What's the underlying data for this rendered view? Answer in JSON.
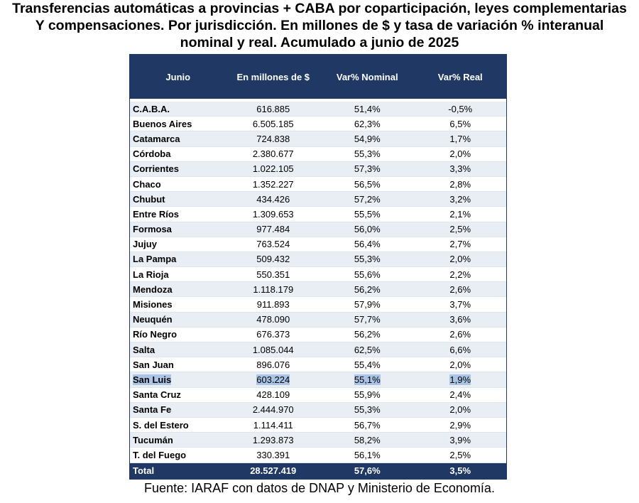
{
  "title": {
    "line1": "Transferencias  automáticas  a provincias  + CABA por coparticipación,  leyes complementarias",
    "line2": "Y compensaciones.  Por jurisdicción.  En millones de $ y tasa de variación % interanual",
    "line3": "nominal  y real.  Acumulado  a junio de 2025"
  },
  "table": {
    "headers": [
      "Junio",
      "En millones de $",
      "Var% Nominal",
      "Var% Real"
    ],
    "rows": [
      {
        "name": "C.A.B.A.",
        "amount": "616.885",
        "nominal": "51,4%",
        "real": "-0,5%"
      },
      {
        "name": "Buenos Aires",
        "amount": "6.505.185",
        "nominal": "62,3%",
        "real": "6,5%"
      },
      {
        "name": "Catamarca",
        "amount": "724.838",
        "nominal": "54,9%",
        "real": "1,7%"
      },
      {
        "name": "Córdoba",
        "amount": "2.380.677",
        "nominal": "55,3%",
        "real": "2,0%"
      },
      {
        "name": "Corrientes",
        "amount": "1.022.105",
        "nominal": "57,3%",
        "real": "3,3%"
      },
      {
        "name": "Chaco",
        "amount": "1.352.227",
        "nominal": "56,5%",
        "real": "2,8%"
      },
      {
        "name": "Chubut",
        "amount": "434.426",
        "nominal": "57,2%",
        "real": "3,2%"
      },
      {
        "name": "Entre Ríos",
        "amount": "1.309.653",
        "nominal": "55,5%",
        "real": "2,1%"
      },
      {
        "name": "Formosa",
        "amount": "977.484",
        "nominal": "56,0%",
        "real": "2,5%"
      },
      {
        "name": "Jujuy",
        "amount": "763.524",
        "nominal": "56,4%",
        "real": "2,7%"
      },
      {
        "name": "La Pampa",
        "amount": "509.432",
        "nominal": "55,3%",
        "real": "2,0%"
      },
      {
        "name": "La Rioja",
        "amount": "550.351",
        "nominal": "55,6%",
        "real": "2,2%"
      },
      {
        "name": "Mendoza",
        "amount": "1.118.179",
        "nominal": "56,2%",
        "real": "2,6%"
      },
      {
        "name": "Misiones",
        "amount": "911.893",
        "nominal": "57,9%",
        "real": "3,7%"
      },
      {
        "name": "Neuquén",
        "amount": "478.090",
        "nominal": "57,7%",
        "real": "3,6%"
      },
      {
        "name": "Río Negro",
        "amount": "676.373",
        "nominal": "56,2%",
        "real": "2,6%"
      },
      {
        "name": "Salta",
        "amount": "1.085.044",
        "nominal": "62,5%",
        "real": "6,6%"
      },
      {
        "name": "San Juan",
        "amount": "896.076",
        "nominal": "55,4%",
        "real": "2,0%"
      },
      {
        "name": "San Luis",
        "amount": "603.224",
        "nominal": "55,1%",
        "real": "1,9%"
      },
      {
        "name": "Santa Cruz",
        "amount": "428.109",
        "nominal": "55,9%",
        "real": "2,4%"
      },
      {
        "name": "Santa Fe",
        "amount": "2.444.970",
        "nominal": "55,3%",
        "real": "2,0%"
      },
      {
        "name": "S. del Estero",
        "amount": "1.114.411",
        "nominal": "56,7%",
        "real": "2,9%"
      },
      {
        "name": "Tucumán",
        "amount": "1.293.873",
        "nominal": "58,2%",
        "real": "3,9%"
      },
      {
        "name": "T. del Fuego",
        "amount": "330.391",
        "nominal": "56,1%",
        "real": "2,5%"
      }
    ],
    "total": {
      "name": "Total",
      "amount": "28.527.419",
      "nominal": "57,6%",
      "real": "3,5%"
    }
  },
  "source": "Fuente: IARAF con datos de DNAP y Ministerio de Economía.",
  "colors": {
    "header_bg": "#1f3864",
    "stripe": "#e9edf4",
    "highlight": "#a9c4e6"
  }
}
